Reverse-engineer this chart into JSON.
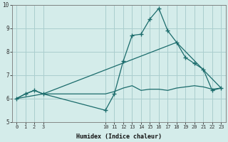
{
  "xlabel": "Humidex (Indice chaleur)",
  "bg_color": "#d4ecea",
  "grid_color": "#aacece",
  "line_color": "#1a6b6b",
  "ylim": [
    5,
    10
  ],
  "yticks": [
    5,
    6,
    7,
    8,
    9,
    10
  ],
  "xlim": [
    -0.5,
    23.5
  ],
  "xticks": [
    0,
    1,
    2,
    3,
    10,
    11,
    12,
    13,
    14,
    15,
    16,
    17,
    18,
    19,
    20,
    21,
    22,
    23
  ],
  "line1_x": [
    0,
    1,
    2,
    3,
    10,
    11,
    12,
    13,
    14,
    15,
    16,
    17,
    18,
    19,
    20,
    21,
    22,
    23
  ],
  "line1_y": [
    6.0,
    6.2,
    6.35,
    6.2,
    6.2,
    6.3,
    6.45,
    6.55,
    6.35,
    6.4,
    6.4,
    6.35,
    6.45,
    6.5,
    6.55,
    6.5,
    6.4,
    6.45
  ],
  "line2_x": [
    0,
    1,
    2,
    3,
    10,
    11,
    12,
    13,
    14,
    15,
    16,
    17,
    18,
    19,
    20,
    21,
    22,
    23
  ],
  "line2_y": [
    6.0,
    6.2,
    6.35,
    6.2,
    5.5,
    6.2,
    7.6,
    8.7,
    8.75,
    9.4,
    9.85,
    8.9,
    8.4,
    7.75,
    7.5,
    7.25,
    6.35,
    6.45
  ],
  "line3_x": [
    0,
    3,
    18,
    23
  ],
  "line3_y": [
    6.0,
    6.2,
    8.4,
    6.45
  ]
}
